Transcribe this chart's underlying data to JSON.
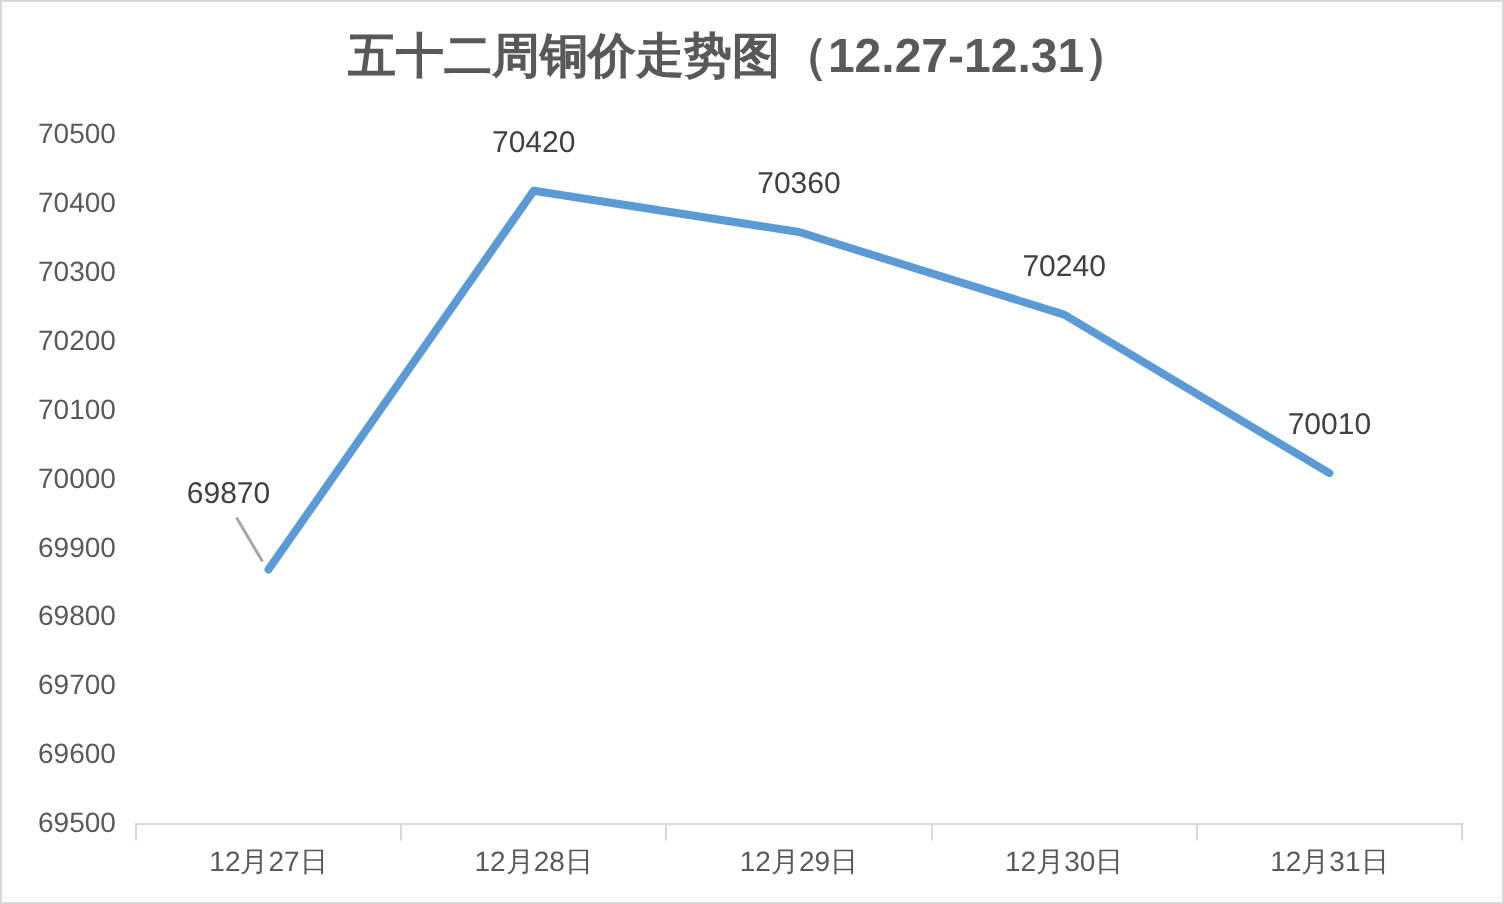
{
  "chart_data": {
    "type": "line",
    "title": "五十二周铜价走势图（12.27-12.31）",
    "categories": [
      "12月27日",
      "12月28日",
      "12月29日",
      "12月30日",
      "12月31日"
    ],
    "series": [
      {
        "color": "#5b9bd5",
        "values": [
          69870,
          70420,
          70360,
          70240,
          70010
        ]
      }
    ],
    "ylim": [
      69500,
      70500
    ],
    "yticks": [
      69500,
      69600,
      69700,
      69800,
      69900,
      70000,
      70100,
      70200,
      70300,
      70400,
      70500
    ],
    "grid": false,
    "legend": false,
    "marker": "none",
    "line_style": "solid",
    "data_labels": true
  }
}
